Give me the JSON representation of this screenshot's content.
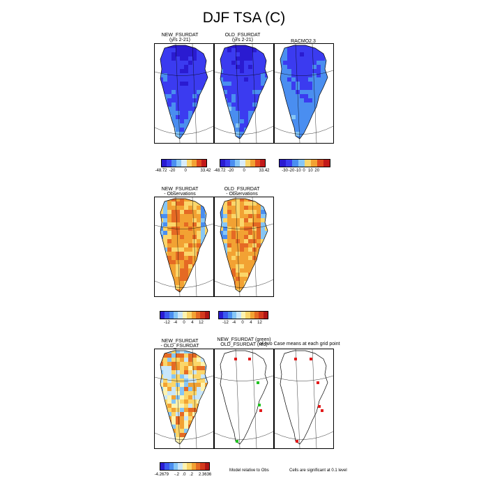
{
  "page": {
    "title": "DJF TSA (C)"
  },
  "rows": [
    {
      "panels": [
        {
          "id": "new-fsurdat",
          "title_line1": "NEW_FSURDAT",
          "title_line2": "(yrs 2-21)",
          "kind": "cold"
        },
        {
          "id": "old-fsurdat",
          "title_line1": "OLD_FSURDAT",
          "title_line2": "(yrs 2-21)",
          "kind": "cold"
        },
        {
          "id": "racmo",
          "title_line1": "RACMO2.3",
          "title_line2": "",
          "kind": "cold-obs"
        }
      ],
      "colorbars": [
        {
          "labels": [
            "-48.72",
            "-20",
            "0",
            "33.42"
          ],
          "colors": [
            "#2a1bd1",
            "#3b3bf0",
            "#4a8ef0",
            "#86c6f6",
            "#d8ecfb",
            "#fbd66a",
            "#f2a233",
            "#e24b1f",
            "#c21a1a"
          ]
        },
        {
          "labels": [
            "-48.72",
            "-20",
            "0",
            "33.42"
          ],
          "colors": [
            "#2a1bd1",
            "#3b3bf0",
            "#4a8ef0",
            "#86c6f6",
            "#d8ecfb",
            "#fbd66a",
            "#f2a233",
            "#e24b1f",
            "#c21a1a"
          ]
        },
        {
          "labels": [
            "-30",
            "-20",
            "-10",
            "0",
            "10",
            "20"
          ],
          "colors": [
            "#2a1bd1",
            "#3b3bf0",
            "#4a8ef0",
            "#86c6f6",
            "#fbd66a",
            "#f2a233",
            "#e24b1f",
            "#c21a1a"
          ]
        }
      ]
    },
    {
      "panels": [
        {
          "id": "new-minus-obs",
          "title_line1": "NEW_FSURDAT",
          "title_line2": "- Observations",
          "kind": "warm"
        },
        {
          "id": "old-minus-obs",
          "title_line1": "OLD_FSURDAT",
          "title_line2": "- Observations",
          "kind": "warm"
        }
      ],
      "colorbars": [
        {
          "labels": [
            "-12",
            "-4",
            "0",
            "4",
            "12"
          ],
          "colors": [
            "#2a1bd1",
            "#3b5af0",
            "#4a8ef0",
            "#86c6f6",
            "#c8e6fb",
            "#fdf3b0",
            "#fbd66a",
            "#f2a233",
            "#e56a24",
            "#d43a1c",
            "#b01515"
          ]
        },
        {
          "labels": [
            "-12",
            "-4",
            "0",
            "4",
            "12"
          ],
          "colors": [
            "#2a1bd1",
            "#3b5af0",
            "#4a8ef0",
            "#86c6f6",
            "#c8e6fb",
            "#fdf3b0",
            "#fbd66a",
            "#f2a233",
            "#e56a24",
            "#d43a1c",
            "#b01515"
          ]
        }
      ]
    },
    {
      "panels": [
        {
          "id": "new-minus-old",
          "title_line1": "NEW_FSURDAT",
          "title_line2": "- OLD_FSURDAT",
          "kind": "diff"
        },
        {
          "id": "sig-model-obs",
          "title_line1": "NEW_FSURDAT (green)",
          "title_line2": "OLD_FSURDAT (red)",
          "kind": "sig1"
        },
        {
          "id": "sig-cases",
          "title_line1": "",
          "title_line2": "",
          "kind": "sig2"
        }
      ],
      "overlay_title": "of two Case means at each grid point",
      "colorbars": [
        {
          "labels": [
            "-4.2679",
            "-.2",
            ".0",
            ".2",
            "2.3636"
          ],
          "colors": [
            "#2a1bd1",
            "#3b5af0",
            "#4a8ef0",
            "#86c6f6",
            "#c8e6fb",
            "#fdf3b0",
            "#fbd66a",
            "#f2a233",
            "#e56a24",
            "#d43a1c",
            "#b01515"
          ]
        }
      ],
      "notes": {
        "left": "Model relative to Obs",
        "right": "Cells are significant at 0.1 level"
      }
    }
  ]
}
